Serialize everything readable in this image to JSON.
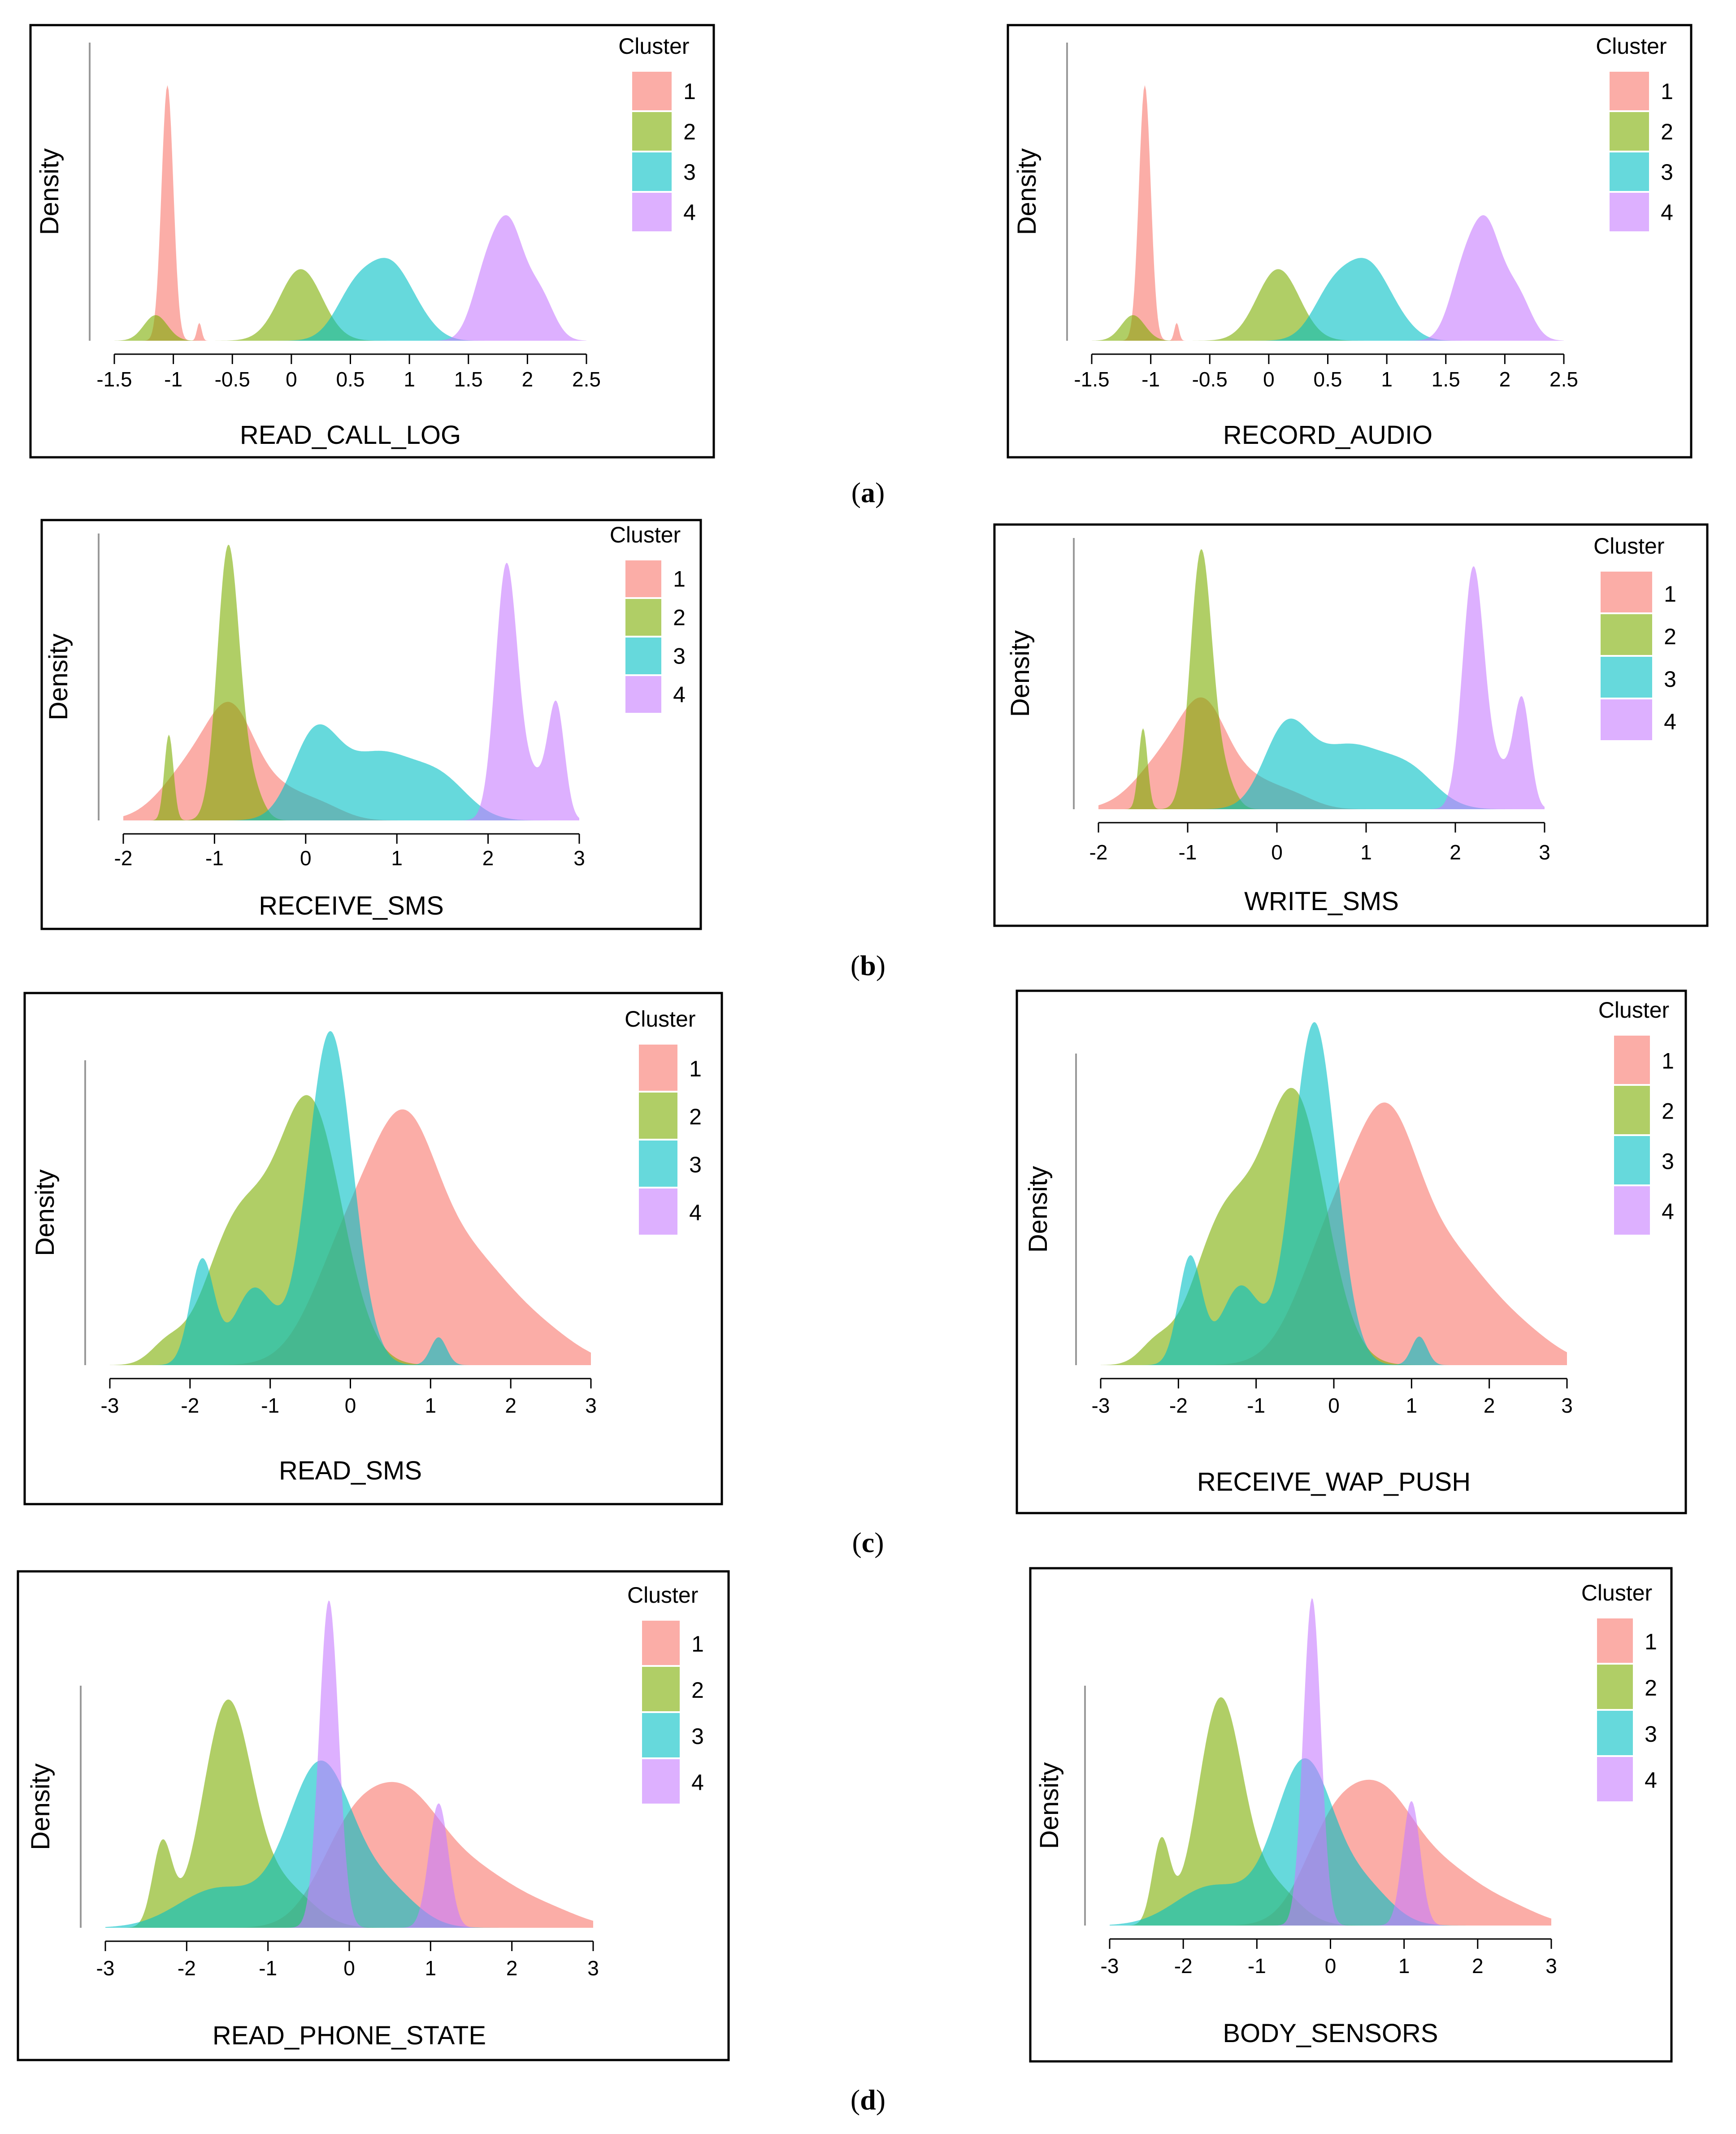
{
  "colors": {
    "cluster_1": "#F8766D",
    "cluster_2": "#7CAE00",
    "cluster_3": "#00BFC4",
    "cluster_4": "#C77CFF"
  },
  "captions": [
    "a",
    "b",
    "c",
    "d"
  ],
  "chart_data": [
    {
      "type": "area",
      "title": "",
      "xlabel": "READ_CALL_LOG",
      "ylabel": "Density",
      "legend_title": "Cluster",
      "legend_placement": "right",
      "xticks": [
        "-1.5",
        "-1",
        "-0.5",
        "0",
        "0.5",
        "1",
        "1.5",
        "2",
        "2.5"
      ],
      "xlim": [
        -1.5,
        2.5
      ],
      "series": [
        {
          "name": "1",
          "components": [
            [
              -1.05,
              0.05,
              1.0
            ],
            [
              -0.78,
              0.02,
              0.07
            ]
          ]
        },
        {
          "name": "2",
          "components": [
            [
              -1.15,
              0.1,
              0.1
            ],
            [
              0.08,
              0.18,
              0.28
            ]
          ]
        },
        {
          "name": "3",
          "components": [
            [
              0.55,
              0.17,
              0.2
            ],
            [
              0.85,
              0.17,
              0.26
            ],
            [
              1.1,
              0.15,
              0.05
            ]
          ]
        },
        {
          "name": "4",
          "components": [
            [
              1.65,
              0.12,
              0.25
            ],
            [
              1.85,
              0.12,
              0.4
            ],
            [
              2.1,
              0.12,
              0.18
            ]
          ]
        }
      ]
    },
    {
      "type": "area",
      "title": "",
      "xlabel": "RECORD_AUDIO",
      "ylabel": "Density",
      "legend_title": "Cluster",
      "legend_placement": "right",
      "xticks": [
        "-1.5",
        "-1",
        "-0.5",
        "0",
        "0.5",
        "1",
        "1.5",
        "2",
        "2.5"
      ],
      "xlim": [
        -1.5,
        2.5
      ],
      "series": [
        {
          "name": "1",
          "components": [
            [
              -1.05,
              0.05,
              1.0
            ],
            [
              -0.78,
              0.02,
              0.07
            ]
          ]
        },
        {
          "name": "2",
          "components": [
            [
              -1.15,
              0.1,
              0.1
            ],
            [
              0.08,
              0.18,
              0.28
            ]
          ]
        },
        {
          "name": "3",
          "components": [
            [
              0.55,
              0.17,
              0.2
            ],
            [
              0.85,
              0.17,
              0.26
            ],
            [
              1.1,
              0.15,
              0.05
            ]
          ]
        },
        {
          "name": "4",
          "components": [
            [
              1.65,
              0.12,
              0.25
            ],
            [
              1.85,
              0.12,
              0.4
            ],
            [
              2.1,
              0.12,
              0.18
            ]
          ]
        }
      ]
    },
    {
      "type": "area",
      "title": "",
      "xlabel": "RECEIVE_SMS",
      "ylabel": "Density",
      "legend_title": "Cluster",
      "legend_placement": "right",
      "xticks": [
        "-2",
        "-1",
        "0",
        "1",
        "2",
        "3"
      ],
      "xlim": [
        -2,
        3
      ],
      "series": [
        {
          "name": "1",
          "components": [
            [
              -1.2,
              0.35,
              0.2
            ],
            [
              -0.8,
              0.25,
              0.28
            ],
            [
              -0.3,
              0.3,
              0.1
            ],
            [
              0.2,
              0.25,
              0.04
            ]
          ]
        },
        {
          "name": "2",
          "components": [
            [
              -1.5,
              0.05,
              0.3
            ],
            [
              -0.85,
              0.12,
              0.95
            ],
            [
              -0.6,
              0.12,
              0.12
            ]
          ]
        },
        {
          "name": "3",
          "components": [
            [
              0.1,
              0.25,
              0.28
            ],
            [
              0.8,
              0.4,
              0.23
            ],
            [
              1.5,
              0.3,
              0.12
            ]
          ]
        },
        {
          "name": "4",
          "components": [
            [
              2.2,
              0.12,
              0.88
            ],
            [
              2.75,
              0.09,
              0.38
            ],
            [
              2.5,
              0.15,
              0.15
            ]
          ]
        }
      ]
    },
    {
      "type": "area",
      "title": "",
      "xlabel": "WRITE_SMS",
      "ylabel": "Density",
      "legend_title": "Cluster",
      "legend_placement": "right",
      "xticks": [
        "-2",
        "-1",
        "0",
        "1",
        "2",
        "3"
      ],
      "xlim": [
        -2,
        3
      ],
      "series": [
        {
          "name": "1",
          "components": [
            [
              -1.2,
              0.35,
              0.2
            ],
            [
              -0.8,
              0.25,
              0.28
            ],
            [
              -0.3,
              0.3,
              0.1
            ],
            [
              0.2,
              0.25,
              0.04
            ]
          ]
        },
        {
          "name": "2",
          "components": [
            [
              -1.5,
              0.05,
              0.3
            ],
            [
              -0.85,
              0.12,
              0.95
            ],
            [
              -0.6,
              0.12,
              0.12
            ]
          ]
        },
        {
          "name": "3",
          "components": [
            [
              0.1,
              0.25,
              0.28
            ],
            [
              0.8,
              0.4,
              0.23
            ],
            [
              1.5,
              0.3,
              0.12
            ]
          ]
        },
        {
          "name": "4",
          "components": [
            [
              2.2,
              0.12,
              0.88
            ],
            [
              2.75,
              0.09,
              0.38
            ],
            [
              2.5,
              0.15,
              0.15
            ]
          ]
        }
      ]
    },
    {
      "type": "area",
      "title": "",
      "xlabel": "READ_SMS",
      "ylabel": "Density",
      "legend_title": "Cluster",
      "legend_placement": "right",
      "xticks": [
        "-3",
        "-2",
        "-1",
        "0",
        "1",
        "2",
        "3"
      ],
      "xlim": [
        -3,
        3
      ],
      "series": [
        {
          "name": "1",
          "components": [
            [
              0.0,
              0.45,
              0.35
            ],
            [
              0.7,
              0.4,
              0.55
            ],
            [
              1.5,
              0.5,
              0.28
            ],
            [
              2.4,
              0.45,
              0.08
            ]
          ]
        },
        {
          "name": "2",
          "components": [
            [
              -2.3,
              0.2,
              0.05
            ],
            [
              -1.4,
              0.4,
              0.4
            ],
            [
              -0.5,
              0.4,
              0.74
            ]
          ]
        },
        {
          "name": "3",
          "components": [
            [
              -1.85,
              0.15,
              0.3
            ],
            [
              -1.2,
              0.25,
              0.22
            ],
            [
              -0.25,
              0.28,
              0.96
            ],
            [
              1.1,
              0.1,
              0.08
            ]
          ]
        },
        {
          "name": "4",
          "components": []
        }
      ]
    },
    {
      "type": "area",
      "title": "",
      "xlabel": "RECEIVE_WAP_PUSH",
      "ylabel": "Density",
      "legend_title": "Cluster",
      "legend_placement": "right",
      "xticks": [
        "-3",
        "-2",
        "-1",
        "0",
        "1",
        "2",
        "3"
      ],
      "xlim": [
        -3,
        3
      ],
      "series": [
        {
          "name": "1",
          "components": [
            [
              0.0,
              0.45,
              0.35
            ],
            [
              0.7,
              0.4,
              0.55
            ],
            [
              1.5,
              0.5,
              0.28
            ],
            [
              2.4,
              0.45,
              0.08
            ]
          ]
        },
        {
          "name": "2",
          "components": [
            [
              -2.3,
              0.2,
              0.05
            ],
            [
              -1.4,
              0.4,
              0.4
            ],
            [
              -0.5,
              0.4,
              0.74
            ]
          ]
        },
        {
          "name": "3",
          "components": [
            [
              -1.85,
              0.15,
              0.3
            ],
            [
              -1.2,
              0.25,
              0.22
            ],
            [
              -0.25,
              0.28,
              0.96
            ],
            [
              1.1,
              0.1,
              0.08
            ]
          ]
        },
        {
          "name": "4",
          "components": []
        }
      ]
    },
    {
      "type": "area",
      "title": "",
      "xlabel": "READ_PHONE_STATE",
      "ylabel": "Density",
      "legend_title": "Cluster",
      "legend_placement": "right",
      "xticks": [
        "-3",
        "-2",
        "-1",
        "0",
        "1",
        "2",
        "3"
      ],
      "xlim": [
        -3,
        3
      ],
      "series": [
        {
          "name": "1",
          "components": [
            [
              0.0,
              0.4,
              0.25
            ],
            [
              0.7,
              0.45,
              0.35
            ],
            [
              1.6,
              0.5,
              0.15
            ],
            [
              2.5,
              0.4,
              0.04
            ]
          ]
        },
        {
          "name": "2",
          "components": [
            [
              -2.3,
              0.12,
              0.25
            ],
            [
              -1.5,
              0.3,
              0.68
            ],
            [
              -0.8,
              0.35,
              0.12
            ]
          ]
        },
        {
          "name": "3",
          "components": [
            [
              -1.6,
              0.5,
              0.12
            ],
            [
              -0.35,
              0.4,
              0.5
            ],
            [
              0.5,
              0.35,
              0.1
            ]
          ]
        },
        {
          "name": "4",
          "components": [
            [
              -0.25,
              0.12,
              1.0
            ],
            [
              1.1,
              0.12,
              0.38
            ]
          ]
        }
      ]
    },
    {
      "type": "area",
      "title": "",
      "xlabel": "BODY_SENSORS",
      "ylabel": "Density",
      "legend_title": "Cluster",
      "legend_placement": "right",
      "xticks": [
        "-3",
        "-2",
        "-1",
        "0",
        "1",
        "2",
        "3"
      ],
      "xlim": [
        -3,
        3
      ],
      "series": [
        {
          "name": "1",
          "components": [
            [
              0.0,
              0.4,
              0.25
            ],
            [
              0.7,
              0.45,
              0.35
            ],
            [
              1.6,
              0.5,
              0.15
            ],
            [
              2.5,
              0.4,
              0.04
            ]
          ]
        },
        {
          "name": "2",
          "components": [
            [
              -2.3,
              0.12,
              0.25
            ],
            [
              -1.5,
              0.3,
              0.68
            ],
            [
              -0.8,
              0.35,
              0.12
            ]
          ]
        },
        {
          "name": "3",
          "components": [
            [
              -1.6,
              0.5,
              0.12
            ],
            [
              -0.35,
              0.4,
              0.5
            ],
            [
              0.5,
              0.35,
              0.1
            ]
          ]
        },
        {
          "name": "4",
          "components": [
            [
              -0.25,
              0.12,
              1.0
            ],
            [
              1.1,
              0.12,
              0.38
            ]
          ]
        }
      ]
    }
  ]
}
